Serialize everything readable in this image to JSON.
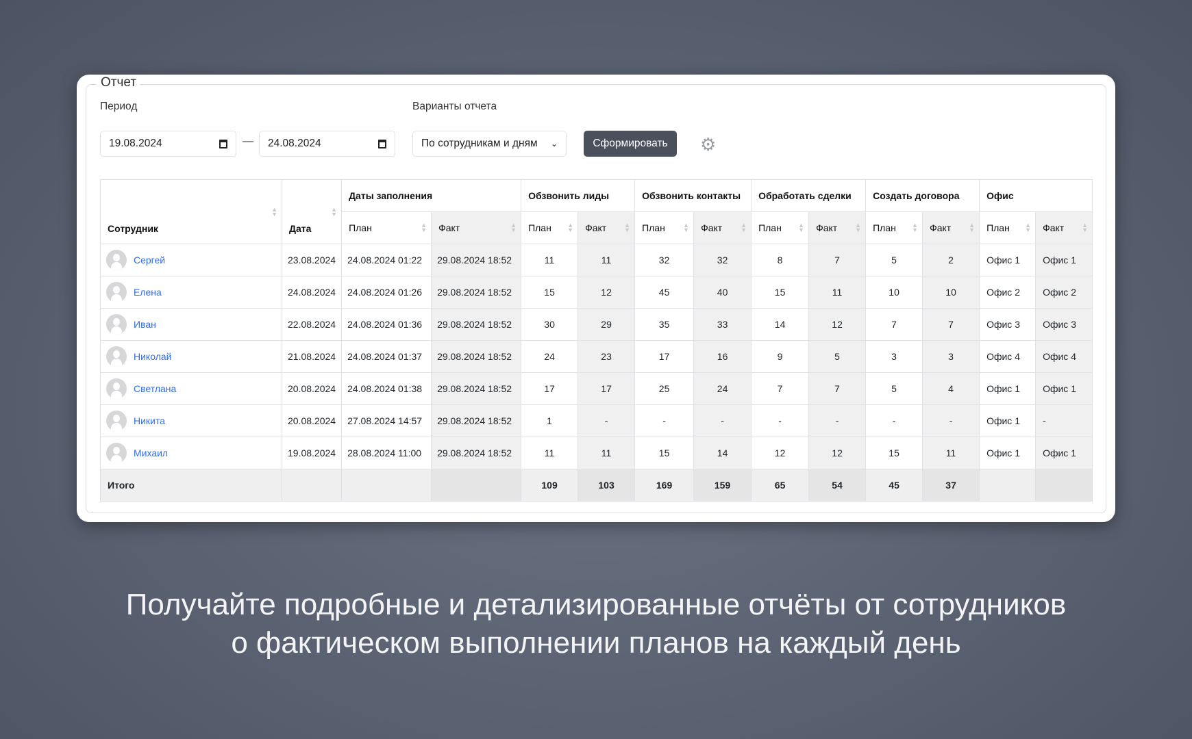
{
  "report": {
    "legend": "Отчет",
    "period_label": "Период",
    "date_from": "19.08.2024",
    "date_to": "24.08.2024",
    "dash": "—",
    "variants_label": "Варианты отчета",
    "variant_selected": "По сотрудникам и дням",
    "submit_label": "Сформировать"
  },
  "table": {
    "headers": {
      "employee": "Сотрудник",
      "date": "Дата",
      "groups": [
        "Даты заполнения",
        "Обзвонить лиды",
        "Обзвонить контакты",
        "Обработать сделки",
        "Создать договора",
        "Офис"
      ],
      "plan": "План",
      "fact": "Факт"
    },
    "rows": [
      [
        "Сергей",
        "23.08.2024",
        "24.08.2024 01:22",
        "29.08.2024 18:52",
        "11",
        "11",
        "32",
        "32",
        "8",
        "7",
        "5",
        "2",
        "Офис 1",
        "Офис 1"
      ],
      [
        "Елена",
        "24.08.2024",
        "24.08.2024 01:26",
        "29.08.2024 18:52",
        "15",
        "12",
        "45",
        "40",
        "15",
        "11",
        "10",
        "10",
        "Офис 2",
        "Офис 2"
      ],
      [
        "Иван",
        "22.08.2024",
        "24.08.2024 01:36",
        "29.08.2024 18:52",
        "30",
        "29",
        "35",
        "33",
        "14",
        "12",
        "7",
        "7",
        "Офис 3",
        "Офис 3"
      ],
      [
        "Николай",
        "21.08.2024",
        "24.08.2024 01:37",
        "29.08.2024 18:52",
        "24",
        "23",
        "17",
        "16",
        "9",
        "5",
        "3",
        "3",
        "Офис 4",
        "Офис 4"
      ],
      [
        "Светлана",
        "20.08.2024",
        "24.08.2024 01:38",
        "29.08.2024 18:52",
        "17",
        "17",
        "25",
        "24",
        "7",
        "7",
        "5",
        "4",
        "Офис 1",
        "Офис 1"
      ],
      [
        "Никита",
        "20.08.2024",
        "27.08.2024 14:57",
        "29.08.2024 18:52",
        "1",
        "-",
        "-",
        "-",
        "-",
        "-",
        "-",
        "-",
        "Офис 1",
        "-"
      ],
      [
        "Михаил",
        "19.08.2024",
        "28.08.2024 11:00",
        "29.08.2024 18:52",
        "11",
        "11",
        "15",
        "14",
        "12",
        "12",
        "15",
        "11",
        "Офис 1",
        "Офис 1"
      ]
    ],
    "footer": [
      "Итого",
      "",
      "",
      "",
      "109",
      "103",
      "169",
      "159",
      "65",
      "54",
      "45",
      "37",
      "",
      ""
    ]
  },
  "caption": {
    "line1": "Получайте подробные и детализированные отчёты от сотрудников",
    "line2": "о фактическом выполнении планов на каждый день"
  }
}
